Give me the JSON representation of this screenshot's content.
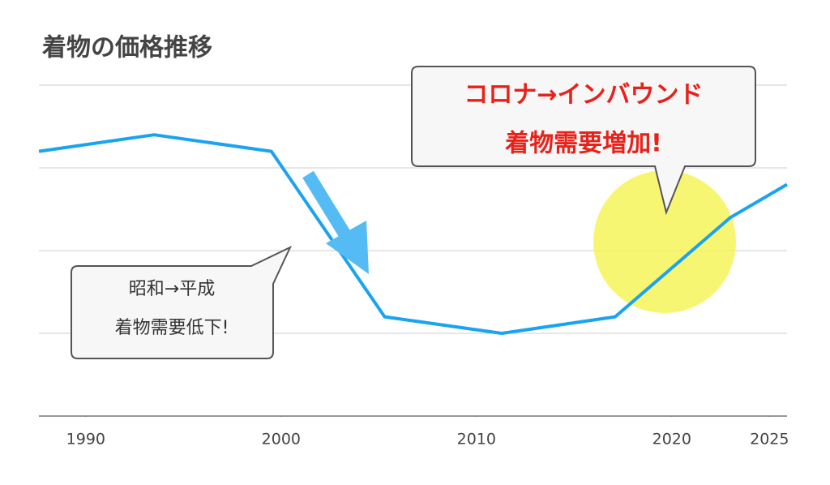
{
  "chart_data": {
    "type": "line",
    "title": "着物の価格推移",
    "x": [
      1987.6,
      1993.5,
      1999.5,
      2005.3,
      2011.3,
      2017.1,
      2023.0,
      2025.9
    ],
    "values": [
      3.2,
      3.4,
      3.2,
      1.2,
      1.0,
      1.2,
      2.4,
      2.8
    ],
    "color": "#1aa3f0",
    "xlim": [
      1987.6,
      2025.9
    ],
    "xticks": [
      1990,
      2000,
      2010,
      2020,
      2025
    ],
    "ylim": [
      0,
      4
    ],
    "yticks": [
      1,
      2,
      3,
      4
    ],
    "grid": true,
    "annotations": [
      {
        "lines": [
          "昭和→平成",
          "着物需要低下!"
        ]
      },
      {
        "lines": [
          "コロナ→インバウンド",
          "着物需要増加!"
        ]
      }
    ]
  }
}
